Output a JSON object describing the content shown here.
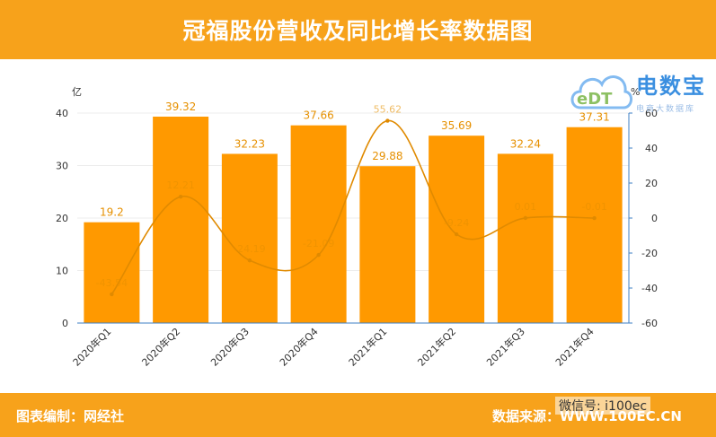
{
  "header": {
    "title": "冠福股份营收及同比增长率数据图"
  },
  "footer": {
    "credit": "图表编制：网经社",
    "source": "数据来源：WWW.100EC.CN"
  },
  "watermark": {
    "logo_text": "电数宝",
    "logo_sub": "电商大数据库",
    "wechat": "微信号: i100ec"
  },
  "colors": {
    "bar": "#ff9900",
    "line": "#e08a00",
    "header_bg": "#f7a21b",
    "axis": "#3d7fc4"
  },
  "chart_data": {
    "type": "bar",
    "categories": [
      "2020年Q1",
      "2020年Q2",
      "2020年Q3",
      "2020年Q4",
      "2021年Q1",
      "2021年Q2",
      "2021年Q3",
      "2021年Q4"
    ],
    "series": [
      {
        "values": [
          19.2,
          39.32,
          32.23,
          37.66,
          29.88,
          35.69,
          32.24,
          37.31
        ],
        "axis": "left",
        "kind": "bar"
      },
      {
        "values": [
          -43.54,
          12.21,
          -24.19,
          -21.09,
          55.62,
          -9.24,
          0.01,
          -0.01
        ],
        "axis": "right",
        "kind": "line",
        "labels": [
          "-43.54",
          "12.21",
          "-24.19",
          "-21.09",
          "55.62",
          "-9.24",
          "0.01",
          "-0.01"
        ]
      }
    ],
    "bar_labels": [
      "19.2",
      "39.32",
      "32.23",
      "37.66",
      "29.88",
      "35.69",
      "32.24",
      "37.31"
    ],
    "y_left": {
      "unit": "亿",
      "ylim": [
        0,
        40
      ],
      "ticks": [
        "0",
        "10",
        "20",
        "30",
        "40"
      ]
    },
    "y_right": {
      "unit": "%",
      "ylim": [
        -60,
        60
      ],
      "ticks": [
        "-60",
        "-40",
        "-20",
        "0",
        "20",
        "40",
        "60"
      ]
    },
    "grid": true
  }
}
